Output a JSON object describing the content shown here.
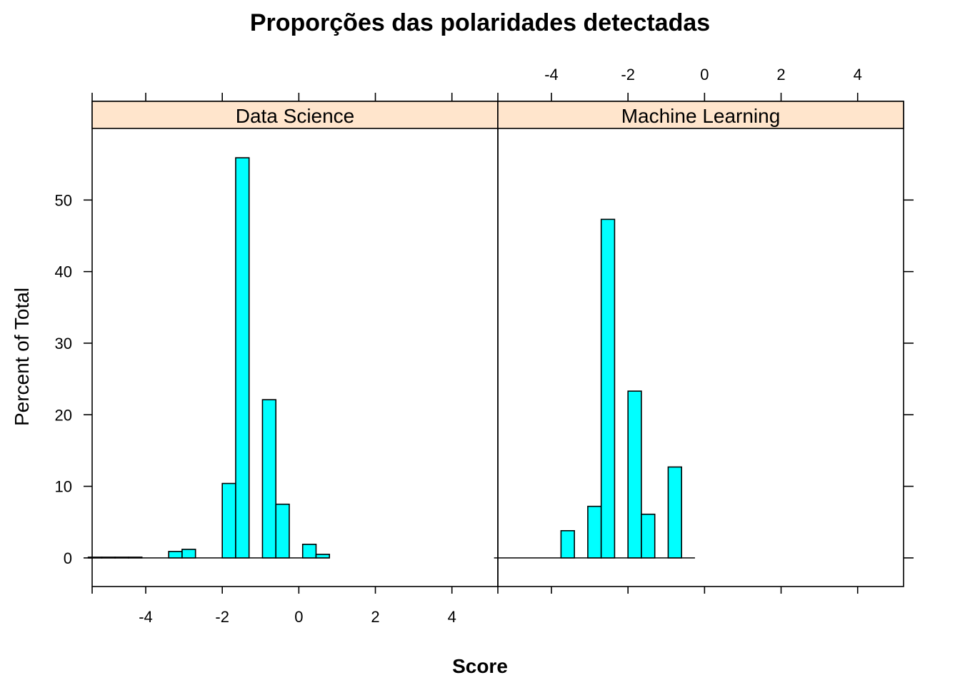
{
  "chart_data": {
    "type": "bar",
    "title": "Proporções das polaridades detectadas",
    "xlabel": "Score",
    "ylabel": "Percent of Total",
    "xlim": [
      -5.4,
      5.2
    ],
    "ylim": [
      -4,
      60
    ],
    "x_ticks": [
      -4,
      -2,
      0,
      2,
      4
    ],
    "x_tick_labels": [
      "-4",
      "-2",
      "0",
      "2",
      "4"
    ],
    "y_ticks": [
      0,
      10,
      20,
      30,
      40,
      50
    ],
    "y_tick_labels": [
      "0",
      "10",
      "20",
      "30",
      "40",
      "50"
    ],
    "bar_color": "#00ffff",
    "strip_color": "#ffe5cc",
    "panels": [
      {
        "name": "Data Science",
        "bins": [
          {
            "x0": -5.5,
            "x1": -5.15,
            "value": 0.1
          },
          {
            "x0": -5.15,
            "x1": -4.8,
            "value": 0.1
          },
          {
            "x0": -4.8,
            "x1": -4.45,
            "value": 0.1
          },
          {
            "x0": -4.45,
            "x1": -4.1,
            "value": 0.1
          },
          {
            "x0": -4.1,
            "x1": -3.75,
            "value": 0
          },
          {
            "x0": -3.75,
            "x1": -3.4,
            "value": 0
          },
          {
            "x0": -3.4,
            "x1": -3.05,
            "value": 0.9
          },
          {
            "x0": -3.05,
            "x1": -2.7,
            "value": 1.2
          },
          {
            "x0": -2.7,
            "x1": -2.35,
            "value": 0
          },
          {
            "x0": -2.35,
            "x1": -2.0,
            "value": 0
          },
          {
            "x0": -2.0,
            "x1": -1.65,
            "value": 10.4
          },
          {
            "x0": -1.65,
            "x1": -1.3,
            "value": 55.9
          },
          {
            "x0": -1.3,
            "x1": -0.95,
            "value": 0
          },
          {
            "x0": -0.95,
            "x1": -0.6,
            "value": 22.1
          },
          {
            "x0": -0.6,
            "x1": -0.25,
            "value": 7.5
          },
          {
            "x0": -0.25,
            "x1": 0.1,
            "value": 0
          },
          {
            "x0": 0.1,
            "x1": 0.45,
            "value": 1.9
          },
          {
            "x0": 0.45,
            "x1": 0.8,
            "value": 0.5
          }
        ]
      },
      {
        "name": "Machine Learning",
        "bins": [
          {
            "x0": -5.5,
            "x1": -5.15,
            "value": 0
          },
          {
            "x0": -5.15,
            "x1": -4.8,
            "value": 0
          },
          {
            "x0": -4.8,
            "x1": -4.45,
            "value": 0
          },
          {
            "x0": -4.45,
            "x1": -4.1,
            "value": 0
          },
          {
            "x0": -4.1,
            "x1": -3.75,
            "value": 0
          },
          {
            "x0": -3.75,
            "x1": -3.4,
            "value": 3.8
          },
          {
            "x0": -3.4,
            "x1": -3.05,
            "value": 0
          },
          {
            "x0": -3.05,
            "x1": -2.7,
            "value": 7.2
          },
          {
            "x0": -2.7,
            "x1": -2.35,
            "value": 47.3
          },
          {
            "x0": -2.35,
            "x1": -2.0,
            "value": 0
          },
          {
            "x0": -2.0,
            "x1": -1.65,
            "value": 23.3
          },
          {
            "x0": -1.65,
            "x1": -1.3,
            "value": 6.1
          },
          {
            "x0": -1.3,
            "x1": -0.95,
            "value": 0
          },
          {
            "x0": -0.95,
            "x1": -0.6,
            "value": 12.7
          },
          {
            "x0": -0.6,
            "x1": -0.25,
            "value": 0
          }
        ]
      }
    ]
  }
}
